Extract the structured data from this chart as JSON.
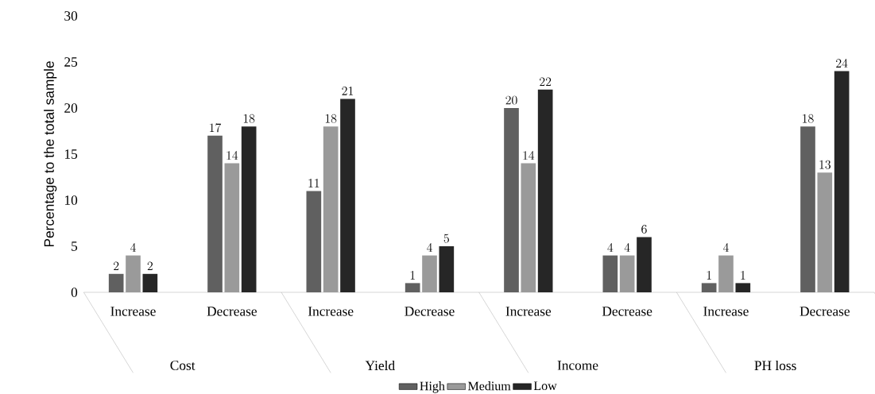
{
  "chart_data": {
    "type": "bar",
    "ylabel": "Percentage to the total sample",
    "categories": [
      "Increase",
      "Decrease",
      "Increase",
      "Decrease",
      "Increase",
      "Decrease",
      "Increase",
      "Decrease"
    ],
    "series": [
      {
        "name": "High",
        "color": "#606060",
        "values": [
          2,
          17,
          11,
          1,
          20,
          4,
          1,
          18
        ]
      },
      {
        "name": "Medium",
        "color": "#9a9a9a",
        "values": [
          4,
          14,
          18,
          4,
          14,
          4,
          4,
          13
        ]
      },
      {
        "name": "Low",
        "color": "#262626",
        "values": [
          2,
          18,
          21,
          5,
          22,
          6,
          1,
          24
        ]
      }
    ],
    "annotations": [
      "Cost",
      "Yield",
      "Income",
      "PH loss"
    ],
    "ylim": [
      0,
      30
    ],
    "yticks": [
      0,
      5,
      10,
      15,
      20,
      25,
      30
    ],
    "data_labels": true,
    "legend": "bottom",
    "grid": false
  }
}
